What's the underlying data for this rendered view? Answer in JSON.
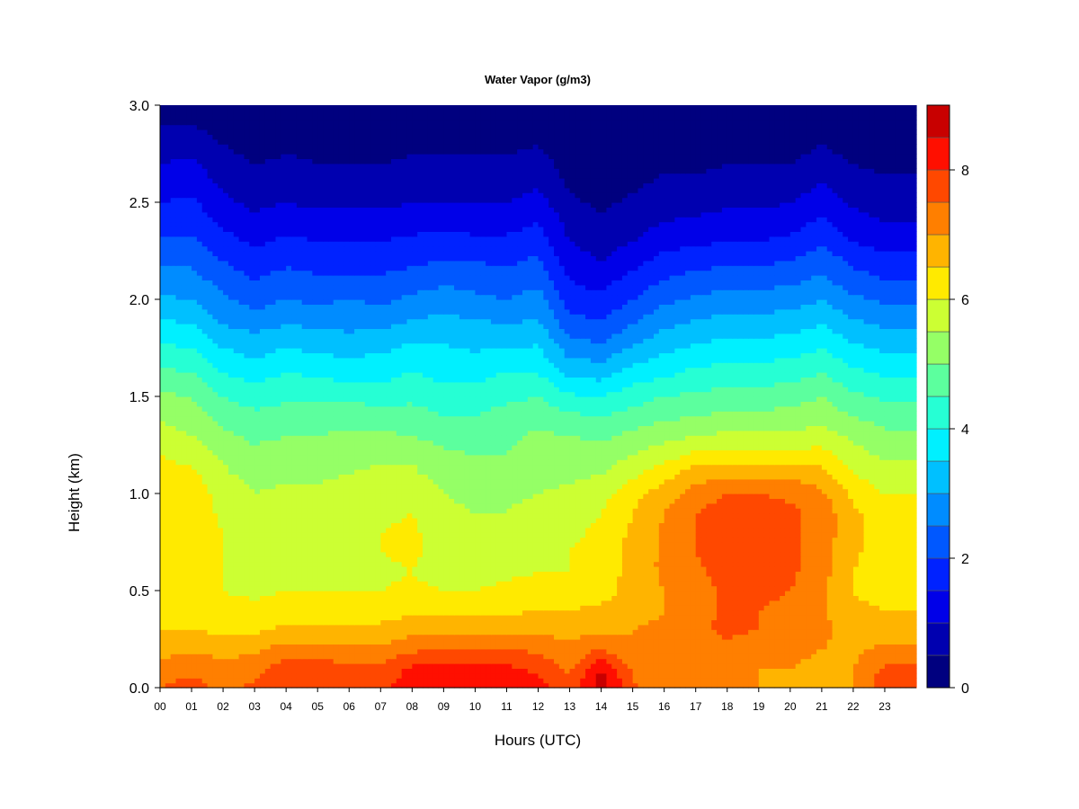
{
  "chart_data": {
    "type": "heatmap",
    "title": "Water Vapor (g/m3)",
    "xlabel": "Hours (UTC)",
    "ylabel": "Height (km)",
    "x_ticks": [
      "00",
      "01",
      "02",
      "03",
      "04",
      "05",
      "06",
      "07",
      "08",
      "09",
      "10",
      "11",
      "12",
      "13",
      "14",
      "15",
      "16",
      "17",
      "18",
      "19",
      "20",
      "21",
      "22",
      "23"
    ],
    "y_ticks": [
      "0.0",
      "0.5",
      "1.0",
      "1.5",
      "2.0",
      "2.5",
      "3.0"
    ],
    "xlim": [
      0,
      24
    ],
    "ylim": [
      0,
      3
    ],
    "colorbar": {
      "ticks": [
        "0",
        "2",
        "4",
        "6",
        "8"
      ],
      "range": [
        0,
        9
      ],
      "levels": [
        0,
        0.5,
        1,
        1.5,
        2,
        2.5,
        3,
        3.5,
        4,
        4.5,
        5,
        5.5,
        6,
        6.5,
        7,
        7.5,
        8,
        8.5,
        9
      ],
      "colors": [
        "#00007f",
        "#0000b0",
        "#0000e8",
        "#0022ff",
        "#0058ff",
        "#008cff",
        "#00c0ff",
        "#00f0ff",
        "#26ffd4",
        "#5cff9e",
        "#95ff66",
        "#ccff33",
        "#ffea00",
        "#ffb400",
        "#ff7f00",
        "#ff4800",
        "#ff0f00",
        "#c80000",
        "#8a0000"
      ]
    },
    "hours": [
      0,
      1,
      2,
      3,
      4,
      5,
      6,
      7,
      8,
      9,
      10,
      11,
      12,
      13,
      14,
      15,
      16,
      17,
      18,
      19,
      20,
      21,
      22,
      23,
      24
    ],
    "heights_km": [
      0.0,
      0.1,
      0.2,
      0.3,
      0.4,
      0.5,
      0.6,
      0.7,
      0.8,
      0.9,
      1.0,
      1.1,
      1.2,
      1.3,
      1.4,
      1.5,
      1.6,
      1.7,
      1.8,
      1.9,
      2.0,
      2.1,
      2.2,
      2.3,
      2.4,
      2.5,
      2.6,
      2.7,
      2.8,
      2.9,
      3.0
    ],
    "values": [
      [
        7.5,
        7.7,
        7.4,
        7.6,
        8.0,
        8.0,
        7.8,
        7.8,
        8.4,
        8.5,
        8.5,
        8.3,
        8.2,
        7.6,
        8.8,
        7.6,
        7.2,
        7.0,
        7.0,
        7.0,
        6.8,
        6.6,
        7.0,
        7.8,
        7.8
      ],
      [
        7.2,
        7.4,
        7.2,
        7.3,
        7.8,
        7.8,
        7.6,
        7.6,
        8.1,
        8.2,
        8.2,
        8.1,
        7.9,
        7.4,
        8.5,
        7.4,
        7.2,
        7.2,
        7.1,
        7.0,
        7.0,
        6.8,
        7.0,
        7.6,
        7.6
      ],
      [
        6.8,
        6.9,
        6.8,
        6.9,
        7.2,
        7.2,
        7.1,
        7.1,
        7.4,
        7.5,
        7.6,
        7.5,
        7.4,
        7.1,
        7.5,
        7.0,
        7.1,
        7.3,
        7.4,
        7.2,
        7.2,
        7.0,
        6.9,
        7.1,
        7.1
      ],
      [
        6.5,
        6.5,
        6.4,
        6.4,
        6.6,
        6.6,
        6.6,
        6.6,
        6.8,
        6.8,
        6.8,
        6.9,
        6.9,
        6.8,
        6.9,
        7.0,
        7.1,
        7.4,
        7.6,
        7.5,
        7.3,
        7.1,
        6.8,
        6.8,
        6.8
      ],
      [
        6.3,
        6.2,
        6.2,
        6.1,
        6.3,
        6.2,
        6.2,
        6.3,
        6.4,
        6.4,
        6.4,
        6.4,
        6.5,
        6.5,
        6.6,
        6.8,
        7.0,
        7.3,
        7.6,
        7.5,
        7.4,
        7.1,
        6.6,
        6.5,
        6.5
      ],
      [
        6.2,
        6.1,
        6.0,
        5.9,
        6.0,
        6.0,
        6.0,
        6.0,
        6.1,
        6.0,
        6.0,
        6.1,
        6.2,
        6.2,
        6.3,
        6.7,
        7.0,
        7.3,
        7.6,
        7.6,
        7.5,
        7.1,
        6.5,
        6.3,
        6.3
      ],
      [
        6.3,
        6.2,
        6.0,
        5.8,
        5.9,
        5.9,
        5.9,
        5.9,
        6.0,
        5.8,
        5.8,
        5.9,
        6.0,
        6.0,
        6.2,
        6.7,
        7.1,
        7.4,
        7.7,
        7.7,
        7.6,
        7.2,
        6.5,
        6.2,
        6.2
      ],
      [
        6.4,
        6.3,
        6.0,
        5.8,
        5.9,
        5.9,
        6.0,
        6.0,
        6.1,
        5.8,
        5.7,
        5.8,
        5.9,
        6.0,
        6.2,
        6.7,
        7.1,
        7.5,
        7.8,
        7.8,
        7.6,
        7.2,
        6.6,
        6.2,
        6.2
      ],
      [
        6.5,
        6.3,
        6.0,
        5.7,
        5.8,
        5.8,
        5.9,
        6.0,
        6.1,
        5.7,
        5.6,
        5.7,
        5.8,
        5.9,
        6.1,
        6.6,
        7.1,
        7.5,
        7.8,
        7.8,
        7.6,
        7.3,
        6.6,
        6.2,
        6.2
      ],
      [
        6.5,
        6.3,
        5.9,
        5.6,
        5.7,
        5.7,
        5.8,
        5.9,
        6.0,
        5.6,
        5.5,
        5.5,
        5.7,
        5.8,
        6.0,
        6.5,
        7.0,
        7.5,
        7.8,
        7.8,
        7.6,
        7.3,
        6.6,
        6.2,
        6.2
      ],
      [
        6.5,
        6.3,
        5.8,
        5.5,
        5.6,
        5.6,
        5.7,
        5.8,
        5.8,
        5.5,
        5.4,
        5.4,
        5.5,
        5.6,
        5.8,
        6.3,
        6.8,
        7.2,
        7.5,
        7.5,
        7.4,
        7.1,
        6.4,
        6.0,
        6.0
      ],
      [
        6.3,
        6.1,
        5.6,
        5.3,
        5.4,
        5.4,
        5.5,
        5.6,
        5.6,
        5.3,
        5.2,
        5.2,
        5.3,
        5.4,
        5.5,
        5.9,
        6.3,
        6.8,
        6.9,
        6.9,
        6.9,
        6.7,
        6.0,
        5.7,
        5.7
      ],
      [
        6.0,
        5.8,
        5.4,
        5.1,
        5.2,
        5.2,
        5.3,
        5.4,
        5.4,
        5.1,
        5.0,
        5.0,
        5.2,
        5.3,
        5.2,
        5.5,
        5.8,
        6.1,
        6.2,
        6.2,
        6.2,
        6.2,
        5.7,
        5.4,
        5.4
      ],
      [
        5.7,
        5.5,
        5.1,
        4.9,
        5.0,
        5.0,
        5.1,
        5.1,
        5.0,
        4.8,
        4.8,
        4.9,
        5.1,
        5.0,
        4.9,
        5.1,
        5.3,
        5.5,
        5.6,
        5.6,
        5.6,
        5.7,
        5.4,
        5.1,
        5.1
      ],
      [
        5.4,
        5.3,
        4.8,
        4.6,
        4.7,
        4.7,
        4.8,
        4.7,
        4.7,
        4.5,
        4.5,
        4.7,
        4.8,
        4.6,
        4.5,
        4.7,
        4.9,
        5.0,
        5.1,
        5.1,
        5.2,
        5.3,
        5.0,
        4.8,
        4.8
      ],
      [
        5.1,
        5.0,
        4.5,
        4.3,
        4.4,
        4.4,
        4.4,
        4.3,
        4.4,
        4.2,
        4.2,
        4.4,
        4.5,
        4.1,
        4.0,
        4.3,
        4.5,
        4.6,
        4.7,
        4.7,
        4.8,
        5.0,
        4.6,
        4.4,
        4.4
      ],
      [
        4.7,
        4.6,
        4.1,
        3.9,
        4.1,
        4.0,
        3.9,
        3.9,
        4.1,
        3.9,
        3.9,
        4.1,
        4.1,
        3.5,
        3.4,
        3.8,
        4.0,
        4.2,
        4.3,
        4.3,
        4.4,
        4.6,
        4.2,
        4.0,
        4.0
      ],
      [
        4.3,
        4.2,
        3.7,
        3.5,
        3.7,
        3.6,
        3.5,
        3.6,
        3.8,
        3.7,
        3.6,
        3.7,
        3.7,
        3.0,
        2.9,
        3.3,
        3.6,
        3.8,
        3.9,
        3.9,
        4.0,
        4.2,
        3.8,
        3.6,
        3.6
      ],
      [
        3.9,
        3.8,
        3.3,
        3.1,
        3.3,
        3.2,
        3.1,
        3.2,
        3.4,
        3.4,
        3.3,
        3.3,
        3.4,
        2.5,
        2.4,
        2.8,
        3.2,
        3.4,
        3.5,
        3.5,
        3.6,
        3.8,
        3.4,
        3.2,
        3.2
      ],
      [
        3.5,
        3.4,
        2.9,
        2.7,
        2.9,
        2.8,
        2.8,
        2.8,
        3.0,
        3.1,
        3.0,
        2.9,
        3.0,
        2.1,
        2.0,
        2.4,
        2.8,
        3.0,
        3.1,
        3.1,
        3.2,
        3.4,
        3.0,
        2.8,
        2.8
      ],
      [
        3.1,
        3.0,
        2.6,
        2.3,
        2.5,
        2.4,
        2.5,
        2.4,
        2.6,
        2.8,
        2.6,
        2.5,
        2.7,
        1.8,
        1.6,
        2.0,
        2.4,
        2.6,
        2.7,
        2.7,
        2.8,
        3.0,
        2.6,
        2.4,
        2.4
      ],
      [
        2.7,
        2.7,
        2.3,
        2.0,
        2.2,
        2.1,
        2.1,
        2.1,
        2.2,
        2.4,
        2.3,
        2.2,
        2.4,
        1.5,
        1.3,
        1.7,
        2.0,
        2.2,
        2.3,
        2.3,
        2.4,
        2.6,
        2.2,
        2.0,
        2.0
      ],
      [
        2.4,
        2.4,
        2.0,
        1.7,
        1.9,
        1.8,
        1.8,
        1.8,
        1.9,
        2.0,
        2.0,
        1.9,
        2.1,
        1.2,
        1.0,
        1.3,
        1.7,
        1.8,
        1.9,
        1.9,
        2.0,
        2.3,
        1.9,
        1.7,
        1.7
      ],
      [
        2.1,
        2.1,
        1.7,
        1.4,
        1.6,
        1.5,
        1.5,
        1.5,
        1.6,
        1.7,
        1.6,
        1.6,
        1.8,
        1.0,
        0.8,
        1.0,
        1.3,
        1.4,
        1.5,
        1.5,
        1.6,
        1.9,
        1.5,
        1.3,
        1.3
      ],
      [
        1.8,
        1.8,
        1.4,
        1.1,
        1.3,
        1.2,
        1.2,
        1.2,
        1.3,
        1.3,
        1.3,
        1.3,
        1.5,
        0.8,
        0.6,
        0.8,
        1.0,
        1.1,
        1.2,
        1.2,
        1.3,
        1.6,
        1.2,
        1.0,
        1.0
      ],
      [
        1.5,
        1.6,
        1.1,
        0.9,
        1.0,
        0.9,
        0.9,
        0.9,
        1.0,
        1.0,
        1.0,
        1.0,
        1.2,
        0.6,
        0.4,
        0.6,
        0.8,
        0.8,
        0.9,
        0.9,
        1.0,
        1.3,
        0.9,
        0.8,
        0.8
      ],
      [
        1.2,
        1.3,
        0.9,
        0.7,
        0.8,
        0.7,
        0.7,
        0.7,
        0.8,
        0.8,
        0.8,
        0.8,
        0.9,
        0.4,
        0.3,
        0.4,
        0.6,
        0.6,
        0.7,
        0.7,
        0.7,
        1.0,
        0.7,
        0.6,
        0.6
      ],
      [
        1.0,
        1.1,
        0.7,
        0.5,
        0.6,
        0.5,
        0.5,
        0.5,
        0.6,
        0.6,
        0.6,
        0.6,
        0.7,
        0.3,
        0.2,
        0.3,
        0.4,
        0.4,
        0.5,
        0.5,
        0.5,
        0.7,
        0.5,
        0.4,
        0.4
      ],
      [
        0.7,
        0.8,
        0.5,
        0.3,
        0.4,
        0.4,
        0.3,
        0.3,
        0.4,
        0.4,
        0.4,
        0.4,
        0.5,
        0.2,
        0.1,
        0.2,
        0.3,
        0.3,
        0.3,
        0.3,
        0.3,
        0.5,
        0.3,
        0.3,
        0.3
      ],
      [
        0.5,
        0.5,
        0.3,
        0.2,
        0.3,
        0.2,
        0.2,
        0.2,
        0.2,
        0.2,
        0.2,
        0.2,
        0.3,
        0.1,
        0.1,
        0.1,
        0.2,
        0.2,
        0.2,
        0.2,
        0.2,
        0.3,
        0.2,
        0.2,
        0.2
      ],
      [
        0.3,
        0.3,
        0.2,
        0.1,
        0.2,
        0.1,
        0.1,
        0.1,
        0.1,
        0.1,
        0.1,
        0.1,
        0.2,
        0.1,
        0.0,
        0.1,
        0.1,
        0.1,
        0.1,
        0.1,
        0.1,
        0.2,
        0.1,
        0.1,
        0.1
      ]
    ]
  }
}
